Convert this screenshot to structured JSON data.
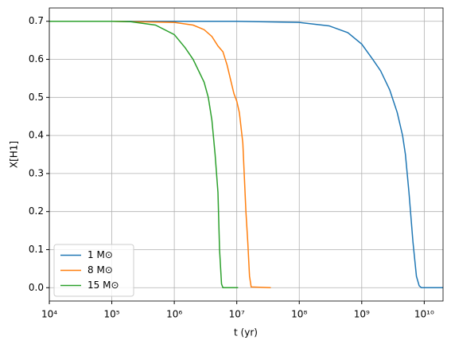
{
  "chart_data": {
    "type": "line",
    "xlabel": "t (yr)",
    "ylabel": "X[H1]",
    "xscale": "log",
    "grid": true,
    "legend": "lower left",
    "xlim": [
      10000,
      20000000000
    ],
    "ylim": [
      -0.035,
      0.735
    ],
    "xticks": [
      {
        "value": 10000,
        "label": "10⁴"
      },
      {
        "value": 100000,
        "label": "10⁵"
      },
      {
        "value": 1000000,
        "label": "10⁶"
      },
      {
        "value": 10000000,
        "label": "10⁷"
      },
      {
        "value": 100000000,
        "label": "10⁸"
      },
      {
        "value": 1000000000,
        "label": "10⁹"
      },
      {
        "value": 10000000000,
        "label": "10¹⁰"
      }
    ],
    "yticks": [
      {
        "value": 0,
        "label": "0.0"
      },
      0.1,
      0.2,
      0.3,
      0.4,
      0.5,
      0.6,
      0.7
    ],
    "series": [
      {
        "name": "1 M⊙",
        "color": "#1f77b4",
        "x": [
          10000,
          1000000,
          10000000,
          100000000,
          300000000,
          600000000,
          1000000000,
          1500000000,
          2000000000,
          2800000000,
          3700000000,
          4500000000,
          5000000000,
          5700000000,
          6600000000,
          7500000000,
          8300000000,
          9000000000,
          20000000000
        ],
        "values": [
          0.7,
          0.7,
          0.7,
          0.697,
          0.688,
          0.67,
          0.64,
          0.6,
          0.57,
          0.52,
          0.46,
          0.4,
          0.35,
          0.25,
          0.12,
          0.03,
          0.005,
          0,
          0
        ]
      },
      {
        "name": "8 M⊙",
        "color": "#ff7f0e",
        "x": [
          10000,
          100000,
          1000000,
          2000000,
          3000000,
          4000000,
          5000000,
          6000000,
          7000000,
          8000000,
          9000000,
          10000000,
          11000000,
          12500000,
          14000000,
          15000000,
          16000000,
          17000000,
          35000000
        ],
        "values": [
          0.7,
          0.7,
          0.697,
          0.69,
          0.678,
          0.66,
          0.635,
          0.62,
          0.585,
          0.545,
          0.51,
          0.49,
          0.46,
          0.38,
          0.2,
          0.12,
          0.03,
          0.002,
          0
        ]
      },
      {
        "name": "15 M⊙",
        "color": "#2ca02c",
        "x": [
          10000,
          100000,
          200000,
          500000,
          1000000,
          1500000,
          2000000,
          3000000,
          3500000,
          4000000,
          4500000,
          5000000,
          5300000,
          5700000,
          6000000,
          10500000
        ],
        "values": [
          0.7,
          0.7,
          0.699,
          0.69,
          0.665,
          0.63,
          0.6,
          0.54,
          0.5,
          0.44,
          0.35,
          0.25,
          0.1,
          0.01,
          0,
          0
        ]
      }
    ]
  }
}
